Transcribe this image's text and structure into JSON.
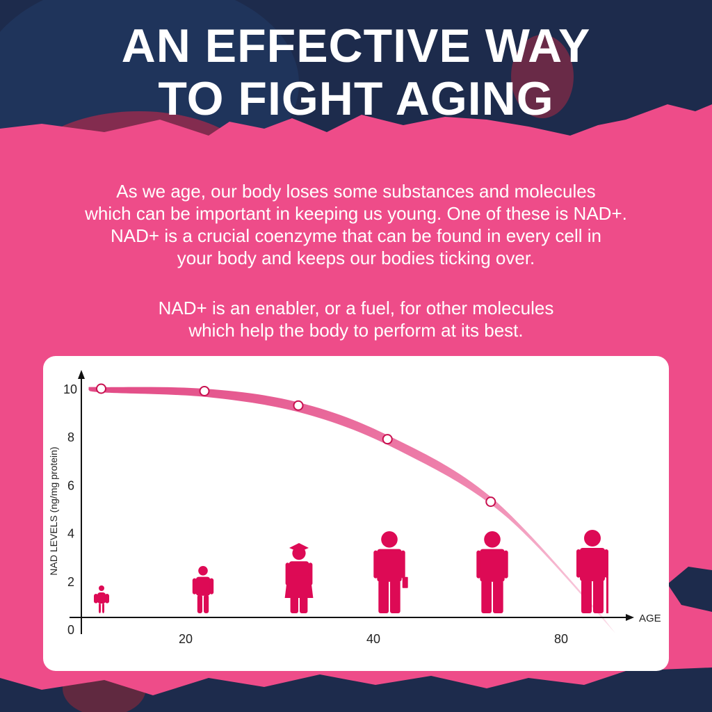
{
  "title": {
    "line1": "AN EFFECTIVE WAY",
    "line2": "TO FIGHT AGING"
  },
  "intro": {
    "lines": [
      "As we age, our body loses some substances and molecules",
      "which can be important in keeping us young. One of these is NAD+.",
      "NAD+ is a crucial coenzyme that can be found in every cell in",
      "your body and keeps our bodies ticking over."
    ],
    "lines2": [
      "NAD+ is an enabler, or a fuel, for other molecules",
      "which help the body to perform at its best."
    ]
  },
  "colors": {
    "background": "#1d2b4c",
    "splash": "#ee4c89",
    "accent": "#dd0a55",
    "curve": "#e95a8f",
    "card": "#ffffff"
  },
  "chart_data": {
    "type": "line",
    "title": "",
    "xlabel": "AGE",
    "ylabel": "NAD LEVELS (ng/mg protein)",
    "x_ticks": [
      20,
      40,
      80
    ],
    "y_ticks": [
      0,
      2,
      4,
      6,
      8,
      10
    ],
    "ylim": [
      0,
      10.5
    ],
    "grid": false,
    "series": [
      {
        "x": [
          11,
          22,
          32,
          43,
          65
        ],
        "y": [
          10.0,
          9.9,
          9.3,
          7.9,
          5.3
        ]
      }
    ],
    "curve_end": {
      "x": 88,
      "y": 0.5
    },
    "figures": [
      "baby",
      "child",
      "graduate",
      "businessman",
      "adult",
      "elder-with-cane"
    ]
  }
}
